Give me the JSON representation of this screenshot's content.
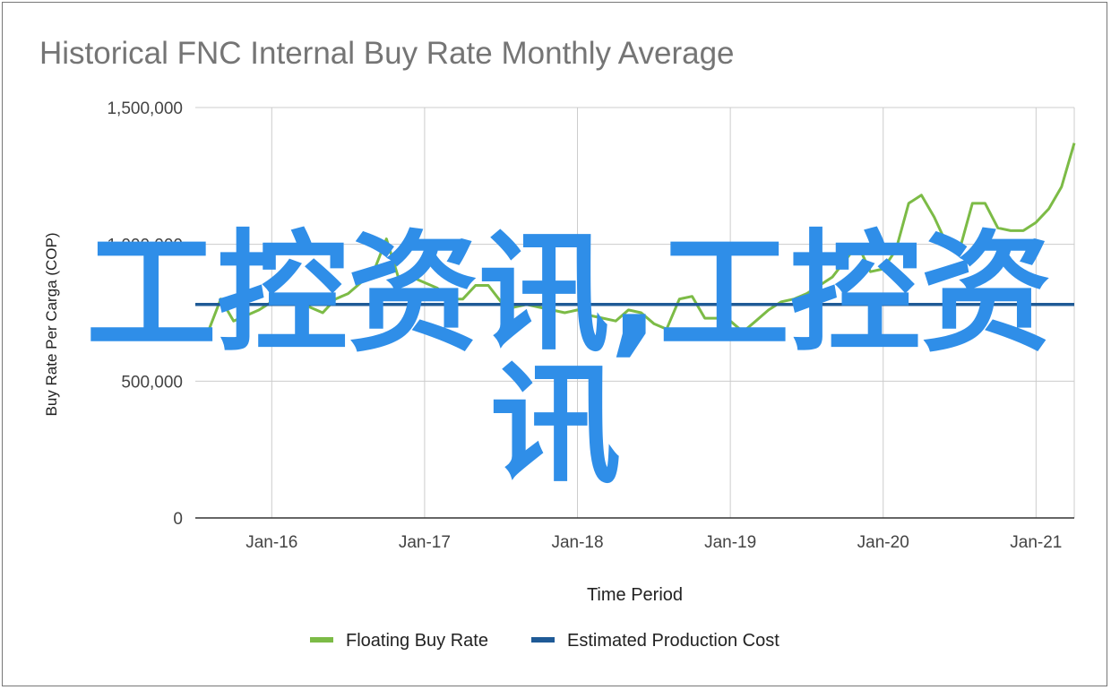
{
  "chart_data": {
    "type": "line",
    "title": "Historical FNC Internal Buy Rate Monthly Average",
    "xlabel": "Time Period",
    "ylabel": "Buy Rate Per Carga (COP)",
    "ylim": [
      0,
      1500000
    ],
    "y_ticks": [
      0,
      500000,
      1000000,
      1500000
    ],
    "y_tick_labels": [
      "0",
      "500,000",
      "1,000,000",
      "1,500,000"
    ],
    "x_range": [
      "2015-07",
      "2021-03"
    ],
    "x_ticks": [
      "2016-01",
      "2017-01",
      "2018-01",
      "2019-01",
      "2020-01",
      "2021-01"
    ],
    "x_tick_labels": [
      "Jan-16",
      "Jan-17",
      "Jan-18",
      "Jan-19",
      "Jan-20",
      "Jan-21"
    ],
    "grid": true,
    "legend_position": "bottom",
    "series": [
      {
        "name": "Floating Buy Rate",
        "color": "#7cbb46",
        "points": [
          [
            "2015-07",
            670000
          ],
          [
            "2015-08",
            680000
          ],
          [
            "2015-09",
            800000
          ],
          [
            "2015-10",
            720000
          ],
          [
            "2015-11",
            740000
          ],
          [
            "2015-12",
            760000
          ],
          [
            "2016-01",
            790000
          ],
          [
            "2016-02",
            790000
          ],
          [
            "2016-03",
            800000
          ],
          [
            "2016-04",
            770000
          ],
          [
            "2016-05",
            750000
          ],
          [
            "2016-06",
            800000
          ],
          [
            "2016-07",
            820000
          ],
          [
            "2016-08",
            860000
          ],
          [
            "2016-09",
            900000
          ],
          [
            "2016-10",
            1020000
          ],
          [
            "2016-11",
            870000
          ],
          [
            "2016-12",
            880000
          ],
          [
            "2017-01",
            860000
          ],
          [
            "2017-02",
            840000
          ],
          [
            "2017-03",
            800000
          ],
          [
            "2017-04",
            800000
          ],
          [
            "2017-05",
            850000
          ],
          [
            "2017-06",
            850000
          ],
          [
            "2017-07",
            790000
          ],
          [
            "2017-08",
            770000
          ],
          [
            "2017-09",
            780000
          ],
          [
            "2017-10",
            770000
          ],
          [
            "2017-11",
            760000
          ],
          [
            "2017-12",
            750000
          ],
          [
            "2018-01",
            760000
          ],
          [
            "2018-02",
            740000
          ],
          [
            "2018-03",
            730000
          ],
          [
            "2018-04",
            720000
          ],
          [
            "2018-05",
            760000
          ],
          [
            "2018-06",
            750000
          ],
          [
            "2018-07",
            710000
          ],
          [
            "2018-08",
            690000
          ],
          [
            "2018-09",
            800000
          ],
          [
            "2018-10",
            810000
          ],
          [
            "2018-11",
            730000
          ],
          [
            "2018-12",
            730000
          ],
          [
            "2019-01",
            720000
          ],
          [
            "2019-02",
            680000
          ],
          [
            "2019-03",
            720000
          ],
          [
            "2019-04",
            760000
          ],
          [
            "2019-05",
            790000
          ],
          [
            "2019-06",
            800000
          ],
          [
            "2019-07",
            820000
          ],
          [
            "2019-08",
            850000
          ],
          [
            "2019-09",
            880000
          ],
          [
            "2019-10",
            940000
          ],
          [
            "2019-11",
            1000000
          ],
          [
            "2019-12",
            900000
          ],
          [
            "2020-01",
            910000
          ],
          [
            "2020-02",
            980000
          ],
          [
            "2020-03",
            1150000
          ],
          [
            "2020-04",
            1180000
          ],
          [
            "2020-05",
            1100000
          ],
          [
            "2020-06",
            1000000
          ],
          [
            "2020-07",
            980000
          ],
          [
            "2020-08",
            1150000
          ],
          [
            "2020-09",
            1150000
          ],
          [
            "2020-10",
            1060000
          ],
          [
            "2020-11",
            1050000
          ],
          [
            "2020-12",
            1050000
          ],
          [
            "2021-01",
            1080000
          ],
          [
            "2021-02",
            1130000
          ],
          [
            "2021-03",
            1210000
          ],
          [
            "2021-04",
            1370000
          ]
        ]
      },
      {
        "name": "Estimated Production Cost",
        "color": "#1f5a96",
        "points": [
          [
            "2015-07",
            780000
          ],
          [
            "2021-04",
            780000
          ]
        ]
      }
    ]
  },
  "watermark": {
    "line1": "工控资讯,工控资",
    "line2": "讯",
    "color": "#2f8ee8"
  }
}
